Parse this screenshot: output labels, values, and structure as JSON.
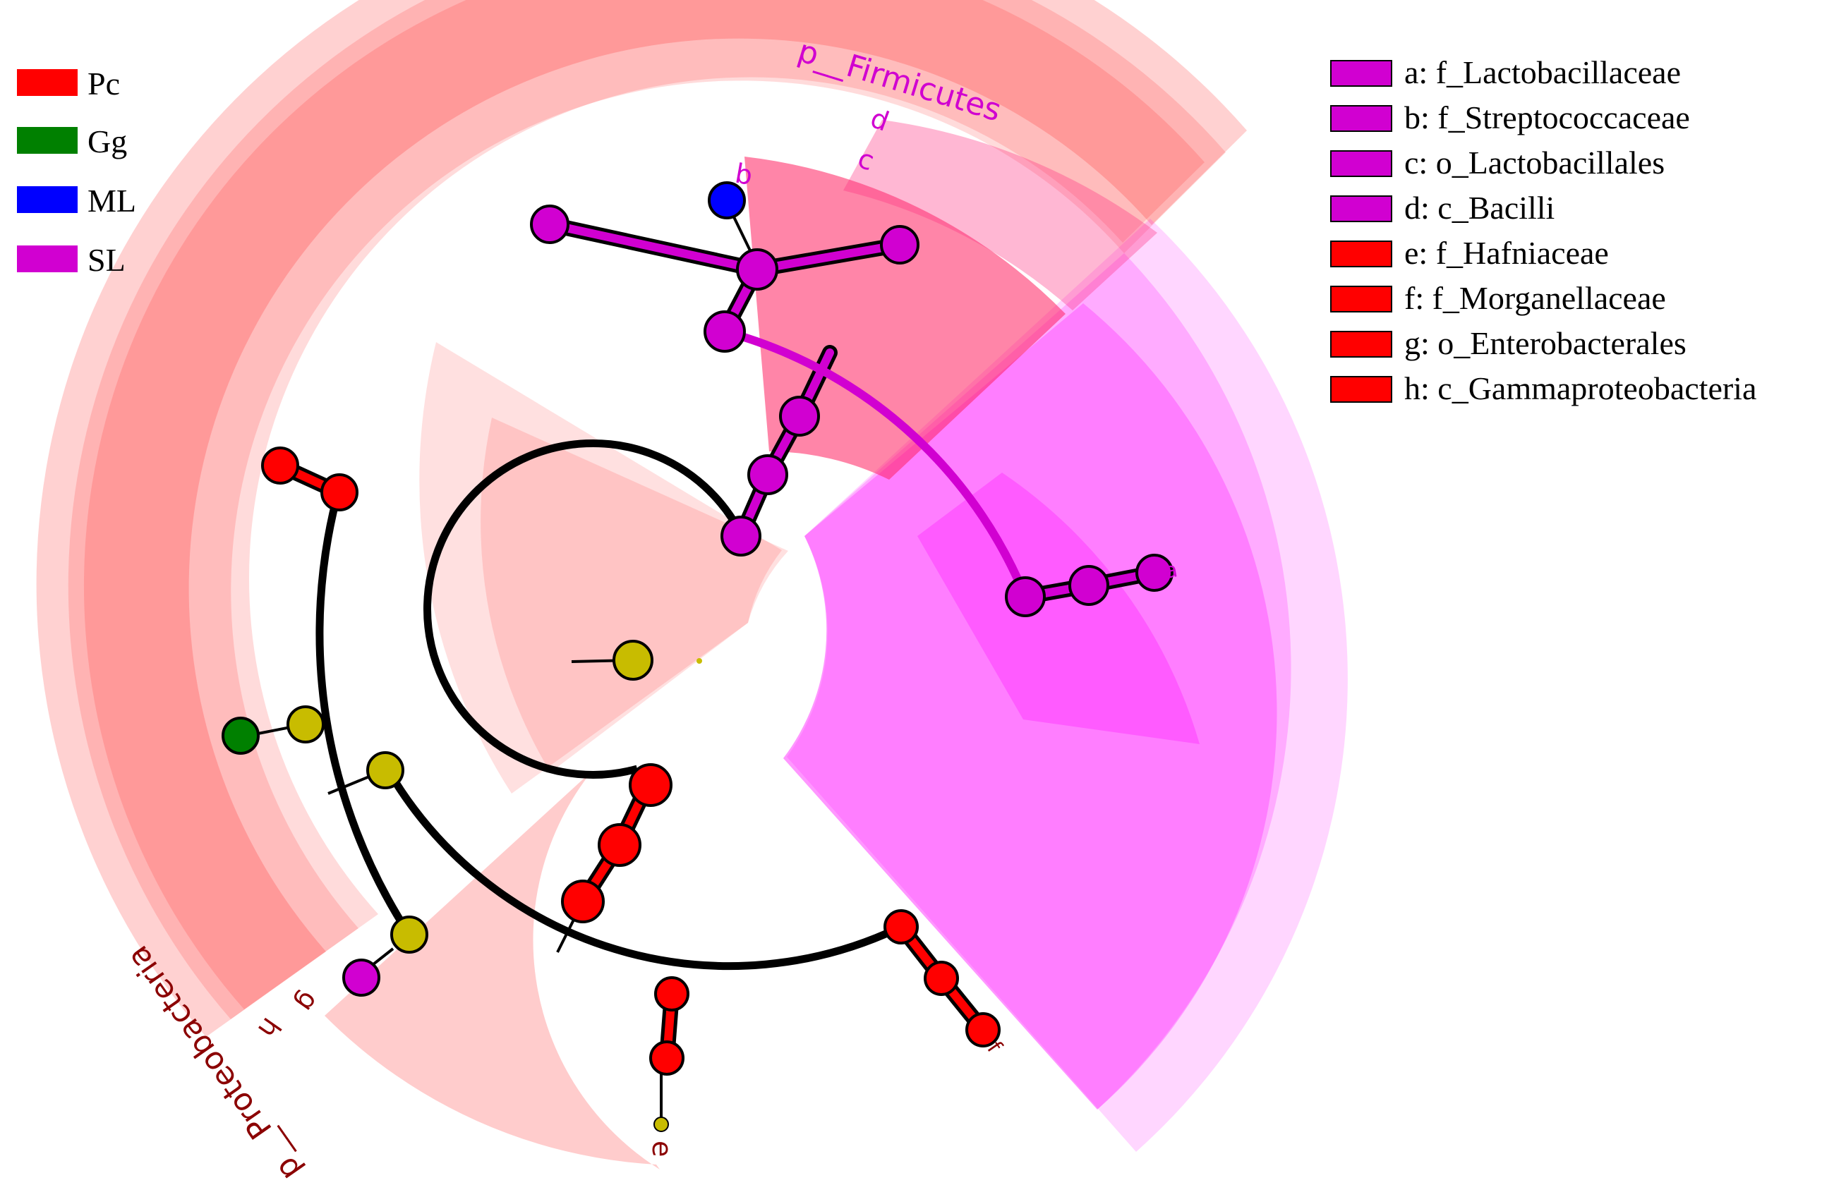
{
  "group_legend": [
    {
      "label": "Pc",
      "color": "#ff0000"
    },
    {
      "label": "Gg",
      "color": "#008000"
    },
    {
      "label": "ML",
      "color": "#0000ff"
    },
    {
      "label": "SL",
      "color": "#d100d1"
    }
  ],
  "taxa_legend": [
    {
      "key": "a",
      "text": "a: f_Lactobacillaceae",
      "color": "#d100d1"
    },
    {
      "key": "b",
      "text": "b: f_Streptococcaceae",
      "color": "#d100d1"
    },
    {
      "key": "c",
      "text": "c: o_Lactobacillales",
      "color": "#d100d1"
    },
    {
      "key": "d",
      "text": "d: c_Bacilli",
      "color": "#d100d1"
    },
    {
      "key": "e",
      "text": "e: f_Hafniaceae",
      "color": "#ff0000"
    },
    {
      "key": "f",
      "text": "f: f_Morganellaceae",
      "color": "#ff0000"
    },
    {
      "key": "g",
      "text": "g: o_Enterobacterales",
      "color": "#ff0000"
    },
    {
      "key": "h",
      "text": "h: c_Gammaproteobacteria",
      "color": "#ff0000"
    }
  ],
  "phylum_labels": {
    "firmicutes": "p__Firmicutes",
    "proteobacteria": "p__Proteobacteria"
  },
  "clade_letters": {
    "a": "a",
    "b": "b",
    "c": "c",
    "d": "d",
    "e": "e",
    "f": "f",
    "g": "g",
    "h": "h"
  },
  "colors": {
    "pc": "#ff0000",
    "gg": "#008000",
    "ml": "#0000ff",
    "sl": "#d100d1",
    "non_significant": "#c8bc00",
    "firmicutes_text": "#d000d0",
    "proteobacteria_text": "#8b0000"
  }
}
